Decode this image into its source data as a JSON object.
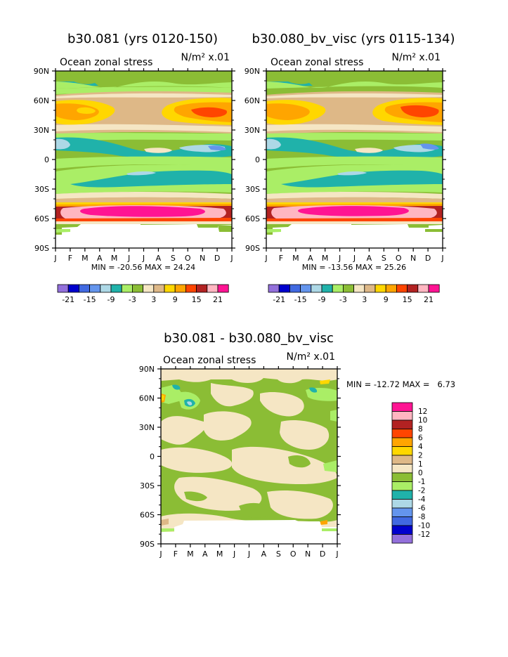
{
  "month_labels": [
    "J",
    "F",
    "M",
    "A",
    "M",
    "J",
    "J",
    "A",
    "S",
    "O",
    "N",
    "D",
    "J"
  ],
  "lat_labels": [
    "90N",
    "60N",
    "30N",
    "0",
    "30S",
    "60S",
    "90S"
  ],
  "palette_main": [
    "#9370db",
    "#0000cd",
    "#4169e1",
    "#6495ed",
    "#add8e6",
    "#20b2aa",
    "#aaee66",
    "#8bbd35",
    "#f5e6c4",
    "#deb887",
    "#ffd700",
    "#ffa500",
    "#ff4500",
    "#b22222",
    "#ffb6c1",
    "#ff1493"
  ],
  "palette_diff": [
    "#9370db",
    "#0000cd",
    "#4169e1",
    "#6495ed",
    "#add8e6",
    "#20b2aa",
    "#aaee66",
    "#8bbd35",
    "#f5e6c4",
    "#deb887",
    "#ffd700",
    "#ffa500",
    "#ff4500",
    "#b22222",
    "#ffb6c1",
    "#ff1493"
  ],
  "chart_data": [
    {
      "type": "heatmap",
      "title": "b30.081 (yrs 0120-150)",
      "subtitle_left": "Ocean zonal stress",
      "units": "N/m² x.01",
      "stats": "MIN = -20.56 MAX =  24.24",
      "x_range": [
        "Jan",
        "Jan"
      ],
      "y_range": [
        -90,
        90
      ],
      "colorbar_labels": [
        "-21",
        "-15",
        "-9",
        "-3",
        "3",
        "9",
        "15",
        "21"
      ],
      "max_color": 15
    },
    {
      "type": "heatmap",
      "title": "b30.080_bv_visc (yrs 0115-134)",
      "subtitle_left": "Ocean zonal stress",
      "units": "N/m² x.01",
      "stats": "MIN = -13.56 MAX =  25.26",
      "x_range": [
        "Jan",
        "Jan"
      ],
      "y_range": [
        -90,
        90
      ],
      "colorbar_labels": [
        "-21",
        "-15",
        "-9",
        "-3",
        "3",
        "9",
        "15",
        "21"
      ],
      "max_color": 15
    },
    {
      "type": "heatmap",
      "title": "b30.081 - b30.080_bv_visc",
      "subtitle_left": "Ocean zonal stress",
      "units": "N/m² x.01",
      "stats": "MIN = -12.72 MAX =   6.73",
      "x_range": [
        "Jan",
        "Jan"
      ],
      "y_range": [
        -90,
        90
      ],
      "colorbar_labels": [
        "12",
        "10",
        "8",
        "6",
        "4",
        "2",
        "1",
        "0",
        "-1",
        "-2",
        "-4",
        "-6",
        "-8",
        "-10",
        "-12"
      ]
    }
  ]
}
